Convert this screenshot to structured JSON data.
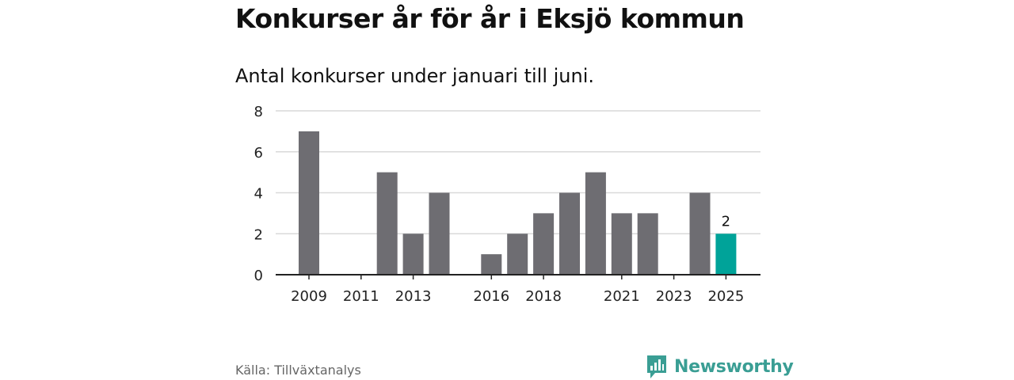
{
  "title": "Konkurser år för år i Eksjö kommun",
  "subtitle": "Antal konkurser under januari till juni.",
  "source": "Källa: Tillväxtanalys",
  "brand": {
    "name": "Newsworthy",
    "color": "#3a9e94",
    "icon": "bar-chart-bubble-icon"
  },
  "chart_data": {
    "type": "bar",
    "categories": [
      "2009",
      "2010",
      "2011",
      "2012",
      "2013",
      "2014",
      "2015",
      "2016",
      "2017",
      "2018",
      "2019",
      "2020",
      "2021",
      "2022",
      "2023",
      "2024",
      "2025"
    ],
    "values": [
      7,
      0,
      0,
      5,
      2,
      4,
      0,
      1,
      2,
      3,
      4,
      5,
      3,
      3,
      0,
      4,
      2
    ],
    "x_tick_labels": [
      "2009",
      "2011",
      "2013",
      "2016",
      "2018",
      "2021",
      "2023",
      "2025"
    ],
    "y_ticks": [
      0,
      2,
      4,
      6,
      8
    ],
    "ylim": [
      0,
      8
    ],
    "grid": true,
    "bar_color": "#6e6d72",
    "highlight": {
      "category": "2025",
      "color": "#00a399",
      "label": "2"
    }
  }
}
